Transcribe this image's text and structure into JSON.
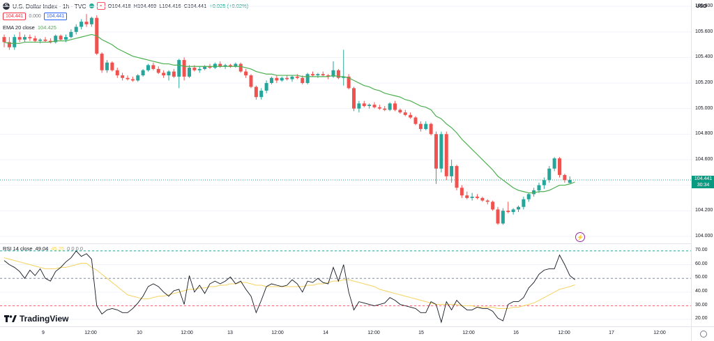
{
  "header": {
    "symbol_logo": "S",
    "symbol_title": "U.S. Dollar Index · 1h · TVC",
    "ohlc": {
      "open": "O104.418",
      "high": "H104.469",
      "low": "L104.416",
      "close": "C104.441",
      "change": "+0.025 (+0.02%)"
    },
    "sell_price": "104.441",
    "spread": "0.000",
    "buy_price": "104.441"
  },
  "indicators": {
    "ema_label": "EMA 20 close",
    "ema_value": "104.425",
    "rsi_label": "RSI 14 close",
    "rsi_value": "49.04",
    "rsi_ma_value": "45.25",
    "rsi_zeros": "0 0 0 0"
  },
  "price_scale": {
    "currency": "USD",
    "labels": [
      "105.800",
      "105.600",
      "105.400",
      "105.200",
      "105.000",
      "104.800",
      "104.600",
      "104.200",
      "104.000"
    ],
    "last_price": "104.441",
    "countdown": "30:34"
  },
  "rsi_scale": {
    "labels": [
      "70.00",
      "60.00",
      "50.00",
      "40.00",
      "30.00",
      "20.00"
    ]
  },
  "time_axis": {
    "labels": [
      "9",
      "12:00",
      "10",
      "12:00",
      "13",
      "12:00",
      "14",
      "12:00",
      "15",
      "12:00",
      "16",
      "12:00",
      "17",
      "12:00"
    ]
  },
  "branding": {
    "name": "TradingView"
  },
  "colors": {
    "up": "#26a69a",
    "down": "#ef5350",
    "ema": "#4caf50",
    "rsi": "#131722",
    "rsi_ma": "#f4d35e",
    "last_price": "#089981"
  },
  "chart_data": {
    "type": "candlestick",
    "symbol": "U.S. Dollar Index",
    "interval": "1h",
    "ylim": [
      103.95,
      105.85
    ],
    "candles": [
      {
        "o": 105.56,
        "h": 105.58,
        "l": 105.48,
        "c": 105.52
      },
      {
        "o": 105.52,
        "h": 105.56,
        "l": 105.46,
        "c": 105.48
      },
      {
        "o": 105.48,
        "h": 105.58,
        "l": 105.46,
        "c": 105.56
      },
      {
        "o": 105.56,
        "h": 105.6,
        "l": 105.52,
        "c": 105.54
      },
      {
        "o": 105.54,
        "h": 105.58,
        "l": 105.52,
        "c": 105.56
      },
      {
        "o": 105.56,
        "h": 105.58,
        "l": 105.53,
        "c": 105.55
      },
      {
        "o": 105.55,
        "h": 105.57,
        "l": 105.52,
        "c": 105.53
      },
      {
        "o": 105.53,
        "h": 105.55,
        "l": 105.51,
        "c": 105.54
      },
      {
        "o": 105.54,
        "h": 105.56,
        "l": 105.52,
        "c": 105.53
      },
      {
        "o": 105.53,
        "h": 105.55,
        "l": 105.51,
        "c": 105.52
      },
      {
        "o": 105.52,
        "h": 105.58,
        "l": 105.51,
        "c": 105.57
      },
      {
        "o": 105.57,
        "h": 105.58,
        "l": 105.53,
        "c": 105.54
      },
      {
        "o": 105.54,
        "h": 105.58,
        "l": 105.52,
        "c": 105.56
      },
      {
        "o": 105.56,
        "h": 105.62,
        "l": 105.55,
        "c": 105.6
      },
      {
        "o": 105.6,
        "h": 105.66,
        "l": 105.58,
        "c": 105.64
      },
      {
        "o": 105.64,
        "h": 105.7,
        "l": 105.62,
        "c": 105.68
      },
      {
        "o": 105.68,
        "h": 105.74,
        "l": 105.64,
        "c": 105.66
      },
      {
        "o": 105.66,
        "h": 105.72,
        "l": 105.64,
        "c": 105.71
      },
      {
        "o": 105.71,
        "h": 105.73,
        "l": 105.42,
        "c": 105.43
      },
      {
        "o": 105.43,
        "h": 105.44,
        "l": 105.28,
        "c": 105.3
      },
      {
        "o": 105.3,
        "h": 105.38,
        "l": 105.28,
        "c": 105.36
      },
      {
        "o": 105.36,
        "h": 105.37,
        "l": 105.29,
        "c": 105.3
      },
      {
        "o": 105.3,
        "h": 105.32,
        "l": 105.24,
        "c": 105.26
      },
      {
        "o": 105.26,
        "h": 105.28,
        "l": 105.22,
        "c": 105.24
      },
      {
        "o": 105.24,
        "h": 105.26,
        "l": 105.22,
        "c": 105.23
      },
      {
        "o": 105.23,
        "h": 105.25,
        "l": 105.21,
        "c": 105.22
      },
      {
        "o": 105.22,
        "h": 105.27,
        "l": 105.21,
        "c": 105.26
      },
      {
        "o": 105.26,
        "h": 105.31,
        "l": 105.25,
        "c": 105.3
      },
      {
        "o": 105.3,
        "h": 105.35,
        "l": 105.29,
        "c": 105.34
      },
      {
        "o": 105.34,
        "h": 105.36,
        "l": 105.3,
        "c": 105.31
      },
      {
        "o": 105.31,
        "h": 105.33,
        "l": 105.27,
        "c": 105.28
      },
      {
        "o": 105.28,
        "h": 105.3,
        "l": 105.24,
        "c": 105.26
      },
      {
        "o": 105.26,
        "h": 105.3,
        "l": 105.22,
        "c": 105.29
      },
      {
        "o": 105.29,
        "h": 105.31,
        "l": 105.24,
        "c": 105.25
      },
      {
        "o": 105.25,
        "h": 105.39,
        "l": 105.16,
        "c": 105.38
      },
      {
        "o": 105.38,
        "h": 105.4,
        "l": 105.22,
        "c": 105.25
      },
      {
        "o": 105.25,
        "h": 105.34,
        "l": 105.24,
        "c": 105.32
      },
      {
        "o": 105.32,
        "h": 105.34,
        "l": 105.29,
        "c": 105.3
      },
      {
        "o": 105.3,
        "h": 105.33,
        "l": 105.28,
        "c": 105.31
      },
      {
        "o": 105.31,
        "h": 105.34,
        "l": 105.3,
        "c": 105.33
      },
      {
        "o": 105.33,
        "h": 105.35,
        "l": 105.31,
        "c": 105.32
      },
      {
        "o": 105.32,
        "h": 105.36,
        "l": 105.31,
        "c": 105.35
      },
      {
        "o": 105.35,
        "h": 105.37,
        "l": 105.32,
        "c": 105.33
      },
      {
        "o": 105.33,
        "h": 105.35,
        "l": 105.31,
        "c": 105.34
      },
      {
        "o": 105.34,
        "h": 105.35,
        "l": 105.32,
        "c": 105.33
      },
      {
        "o": 105.33,
        "h": 105.36,
        "l": 105.32,
        "c": 105.35
      },
      {
        "o": 105.35,
        "h": 105.36,
        "l": 105.28,
        "c": 105.29
      },
      {
        "o": 105.29,
        "h": 105.31,
        "l": 105.24,
        "c": 105.26
      },
      {
        "o": 105.26,
        "h": 105.27,
        "l": 105.16,
        "c": 105.17
      },
      {
        "o": 105.17,
        "h": 105.18,
        "l": 105.07,
        "c": 105.09
      },
      {
        "o": 105.09,
        "h": 105.16,
        "l": 105.07,
        "c": 105.14
      },
      {
        "o": 105.14,
        "h": 105.22,
        "l": 105.12,
        "c": 105.2
      },
      {
        "o": 105.2,
        "h": 105.25,
        "l": 105.19,
        "c": 105.24
      },
      {
        "o": 105.24,
        "h": 105.26,
        "l": 105.2,
        "c": 105.22
      },
      {
        "o": 105.22,
        "h": 105.25,
        "l": 105.21,
        "c": 105.24
      },
      {
        "o": 105.24,
        "h": 105.26,
        "l": 105.22,
        "c": 105.23
      },
      {
        "o": 105.23,
        "h": 105.26,
        "l": 105.21,
        "c": 105.25
      },
      {
        "o": 105.25,
        "h": 105.27,
        "l": 105.23,
        "c": 105.24
      },
      {
        "o": 105.24,
        "h": 105.26,
        "l": 105.19,
        "c": 105.2
      },
      {
        "o": 105.2,
        "h": 105.28,
        "l": 105.19,
        "c": 105.27
      },
      {
        "o": 105.27,
        "h": 105.29,
        "l": 105.25,
        "c": 105.26
      },
      {
        "o": 105.26,
        "h": 105.28,
        "l": 105.24,
        "c": 105.27
      },
      {
        "o": 105.27,
        "h": 105.29,
        "l": 105.25,
        "c": 105.26
      },
      {
        "o": 105.26,
        "h": 105.27,
        "l": 105.23,
        "c": 105.25
      },
      {
        "o": 105.25,
        "h": 105.37,
        "l": 105.24,
        "c": 105.3
      },
      {
        "o": 105.3,
        "h": 105.31,
        "l": 105.23,
        "c": 105.24
      },
      {
        "o": 105.24,
        "h": 105.46,
        "l": 105.18,
        "c": 105.25
      },
      {
        "o": 105.25,
        "h": 105.27,
        "l": 105.15,
        "c": 105.16
      },
      {
        "o": 105.16,
        "h": 105.17,
        "l": 104.98,
        "c": 105.0
      },
      {
        "o": 105.0,
        "h": 105.06,
        "l": 104.97,
        "c": 105.04
      },
      {
        "o": 105.04,
        "h": 105.06,
        "l": 105.01,
        "c": 105.02
      },
      {
        "o": 105.02,
        "h": 105.04,
        "l": 105.0,
        "c": 105.03
      },
      {
        "o": 105.03,
        "h": 105.05,
        "l": 105.0,
        "c": 105.01
      },
      {
        "o": 105.01,
        "h": 105.03,
        "l": 104.99,
        "c": 105.0
      },
      {
        "o": 105.0,
        "h": 105.02,
        "l": 104.98,
        "c": 104.99
      },
      {
        "o": 104.99,
        "h": 105.05,
        "l": 104.98,
        "c": 105.04
      },
      {
        "o": 105.04,
        "h": 105.06,
        "l": 104.98,
        "c": 104.99
      },
      {
        "o": 104.99,
        "h": 105.0,
        "l": 104.96,
        "c": 104.97
      },
      {
        "o": 104.97,
        "h": 104.99,
        "l": 104.94,
        "c": 104.95
      },
      {
        "o": 104.95,
        "h": 104.97,
        "l": 104.92,
        "c": 104.93
      },
      {
        "o": 104.93,
        "h": 104.94,
        "l": 104.87,
        "c": 104.88
      },
      {
        "o": 104.88,
        "h": 104.9,
        "l": 104.82,
        "c": 104.84
      },
      {
        "o": 104.84,
        "h": 104.9,
        "l": 104.83,
        "c": 104.88
      },
      {
        "o": 104.88,
        "h": 104.89,
        "l": 104.79,
        "c": 104.8
      },
      {
        "o": 104.8,
        "h": 104.82,
        "l": 104.41,
        "c": 104.53
      },
      {
        "o": 104.53,
        "h": 104.82,
        "l": 104.5,
        "c": 104.8
      },
      {
        "o": 104.8,
        "h": 104.82,
        "l": 104.44,
        "c": 104.47
      },
      {
        "o": 104.47,
        "h": 104.6,
        "l": 104.42,
        "c": 104.55
      },
      {
        "o": 104.55,
        "h": 104.56,
        "l": 104.36,
        "c": 104.38
      },
      {
        "o": 104.38,
        "h": 104.4,
        "l": 104.3,
        "c": 104.32
      },
      {
        "o": 104.32,
        "h": 104.35,
        "l": 104.29,
        "c": 104.3
      },
      {
        "o": 104.3,
        "h": 104.34,
        "l": 104.28,
        "c": 104.31
      },
      {
        "o": 104.31,
        "h": 104.33,
        "l": 104.29,
        "c": 104.3
      },
      {
        "o": 104.3,
        "h": 104.31,
        "l": 104.27,
        "c": 104.28
      },
      {
        "o": 104.28,
        "h": 104.29,
        "l": 104.25,
        "c": 104.27
      },
      {
        "o": 104.27,
        "h": 104.28,
        "l": 104.2,
        "c": 104.21
      },
      {
        "o": 104.21,
        "h": 104.23,
        "l": 104.09,
        "c": 104.1
      },
      {
        "o": 104.1,
        "h": 104.22,
        "l": 104.09,
        "c": 104.2
      },
      {
        "o": 104.2,
        "h": 104.27,
        "l": 104.18,
        "c": 104.19
      },
      {
        "o": 104.19,
        "h": 104.22,
        "l": 104.17,
        "c": 104.21
      },
      {
        "o": 104.21,
        "h": 104.24,
        "l": 104.19,
        "c": 104.23
      },
      {
        "o": 104.23,
        "h": 104.31,
        "l": 104.21,
        "c": 104.29
      },
      {
        "o": 104.29,
        "h": 104.34,
        "l": 104.27,
        "c": 104.33
      },
      {
        "o": 104.33,
        "h": 104.38,
        "l": 104.31,
        "c": 104.36
      },
      {
        "o": 104.36,
        "h": 104.42,
        "l": 104.34,
        "c": 104.4
      },
      {
        "o": 104.4,
        "h": 104.46,
        "l": 104.37,
        "c": 104.44
      },
      {
        "o": 104.44,
        "h": 104.55,
        "l": 104.42,
        "c": 104.53
      },
      {
        "o": 104.53,
        "h": 104.62,
        "l": 104.51,
        "c": 104.61
      },
      {
        "o": 104.61,
        "h": 104.62,
        "l": 104.46,
        "c": 104.48
      },
      {
        "o": 104.48,
        "h": 104.49,
        "l": 104.42,
        "c": 104.44
      },
      {
        "o": 104.418,
        "h": 104.469,
        "l": 104.416,
        "c": 104.441
      }
    ],
    "ema": [
      105.52,
      105.51,
      105.51,
      105.51,
      105.52,
      105.52,
      105.52,
      105.52,
      105.52,
      105.52,
      105.53,
      105.53,
      105.53,
      105.54,
      105.55,
      105.56,
      105.57,
      105.58,
      105.57,
      105.54,
      105.52,
      105.5,
      105.47,
      105.45,
      105.43,
      105.41,
      105.4,
      105.39,
      105.38,
      105.37,
      105.36,
      105.35,
      105.35,
      105.34,
      105.34,
      105.33,
      105.33,
      105.33,
      105.33,
      105.33,
      105.33,
      105.33,
      105.33,
      105.33,
      105.33,
      105.33,
      105.33,
      105.32,
      105.31,
      105.29,
      105.28,
      105.27,
      105.27,
      105.26,
      105.26,
      105.26,
      105.26,
      105.26,
      105.25,
      105.25,
      105.25,
      105.25,
      105.25,
      105.25,
      105.26,
      105.25,
      105.25,
      105.24,
      105.22,
      105.2,
      105.18,
      105.17,
      105.15,
      105.14,
      105.12,
      105.11,
      105.1,
      105.09,
      105.07,
      105.06,
      105.04,
      105.02,
      105.01,
      104.99,
      104.94,
      104.92,
      104.88,
      104.85,
      104.81,
      104.76,
      104.72,
      104.68,
      104.64,
      104.6,
      104.56,
      104.52,
      104.47,
      104.44,
      104.41,
      104.38,
      104.36,
      104.35,
      104.34,
      104.34,
      104.35,
      104.35,
      104.36,
      104.38,
      104.4,
      104.4,
      104.41,
      104.425
    ],
    "rsi": [
      63,
      60,
      58,
      55,
      50,
      56,
      52,
      57,
      50,
      48,
      55,
      58,
      62,
      65,
      70,
      66,
      68,
      64,
      30,
      24,
      27,
      28,
      27,
      25,
      25,
      28,
      32,
      37,
      44,
      46,
      44,
      40,
      37,
      41,
      42,
      31,
      52,
      40,
      45,
      39,
      46,
      48,
      46,
      48,
      51,
      46,
      48,
      42,
      37,
      25,
      34,
      44,
      46,
      45,
      44,
      45,
      49,
      46,
      40,
      48,
      47,
      50,
      47,
      46,
      58,
      48,
      60,
      40,
      27,
      33,
      32,
      31,
      30,
      31,
      32,
      36,
      34,
      31,
      30,
      29,
      28,
      25,
      25,
      33,
      31,
      18,
      33,
      27,
      34,
      30,
      27,
      27,
      29,
      28,
      28,
      26,
      21,
      19,
      31,
      33,
      33,
      36,
      43,
      47,
      53,
      56,
      57,
      57,
      67,
      60,
      52,
      49
    ],
    "rsi_ma": [
      65,
      64,
      63,
      62,
      61,
      60,
      59,
      58,
      57,
      57,
      57,
      58,
      58,
      59,
      60,
      61,
      61,
      58,
      56,
      53,
      50,
      47,
      44,
      41,
      38,
      37,
      36,
      35,
      35,
      36,
      37,
      37,
      38,
      39,
      40,
      41,
      42,
      42,
      43,
      43,
      44,
      44,
      45,
      45,
      46,
      46,
      47,
      47,
      46,
      45,
      45,
      44,
      44,
      44,
      44,
      44,
      44,
      44,
      44,
      45,
      45,
      46,
      46,
      47,
      48,
      48,
      49,
      49,
      48,
      47,
      46,
      45,
      44,
      42,
      41,
      40,
      39,
      38,
      37,
      36,
      35,
      34,
      33,
      32,
      31,
      31,
      31,
      31,
      31,
      30,
      30,
      30,
      29,
      29,
      29,
      29,
      28,
      28,
      28,
      29,
      29,
      30,
      31,
      32,
      34,
      36,
      38,
      40,
      42,
      43,
      44,
      45.25
    ],
    "rsi_levels": [
      70,
      50,
      30
    ],
    "rsi_ylim": [
      15,
      75
    ]
  }
}
